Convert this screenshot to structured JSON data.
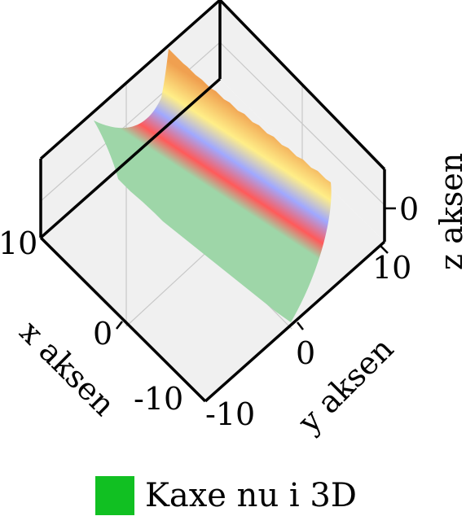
{
  "chart_data": {
    "type": "surface",
    "title": "",
    "xlabel": "x aksen",
    "ylabel": "y aksen",
    "zlabel": "z aksen",
    "x_ticks": [
      -10,
      0,
      10
    ],
    "y_ticks": [
      -10,
      0,
      10
    ],
    "z_ticks": [
      0
    ],
    "xlim": [
      -15,
      15
    ],
    "ylim": [
      -15,
      15
    ],
    "zlim": [
      -10,
      10
    ],
    "grid": true,
    "legend": {
      "placement": "bottom-center",
      "entries": [
        {
          "label": "Kaxe nu i 3D",
          "color": "#11c022"
        }
      ]
    },
    "colors": {
      "pane": "#f0f0f0",
      "box": "#000000",
      "grid": "#c8c8c8",
      "low": "#9ed6a8",
      "mid_red": "#ff5a5a",
      "mid_blue": "#a0a8ff",
      "mid_yellow": "#ffee88",
      "high": "#f0a050"
    },
    "colorscale": [
      "#9ed6a8",
      "#ff5a5a",
      "#a0a8ff",
      "#ffee88",
      "#f0a050"
    ]
  }
}
